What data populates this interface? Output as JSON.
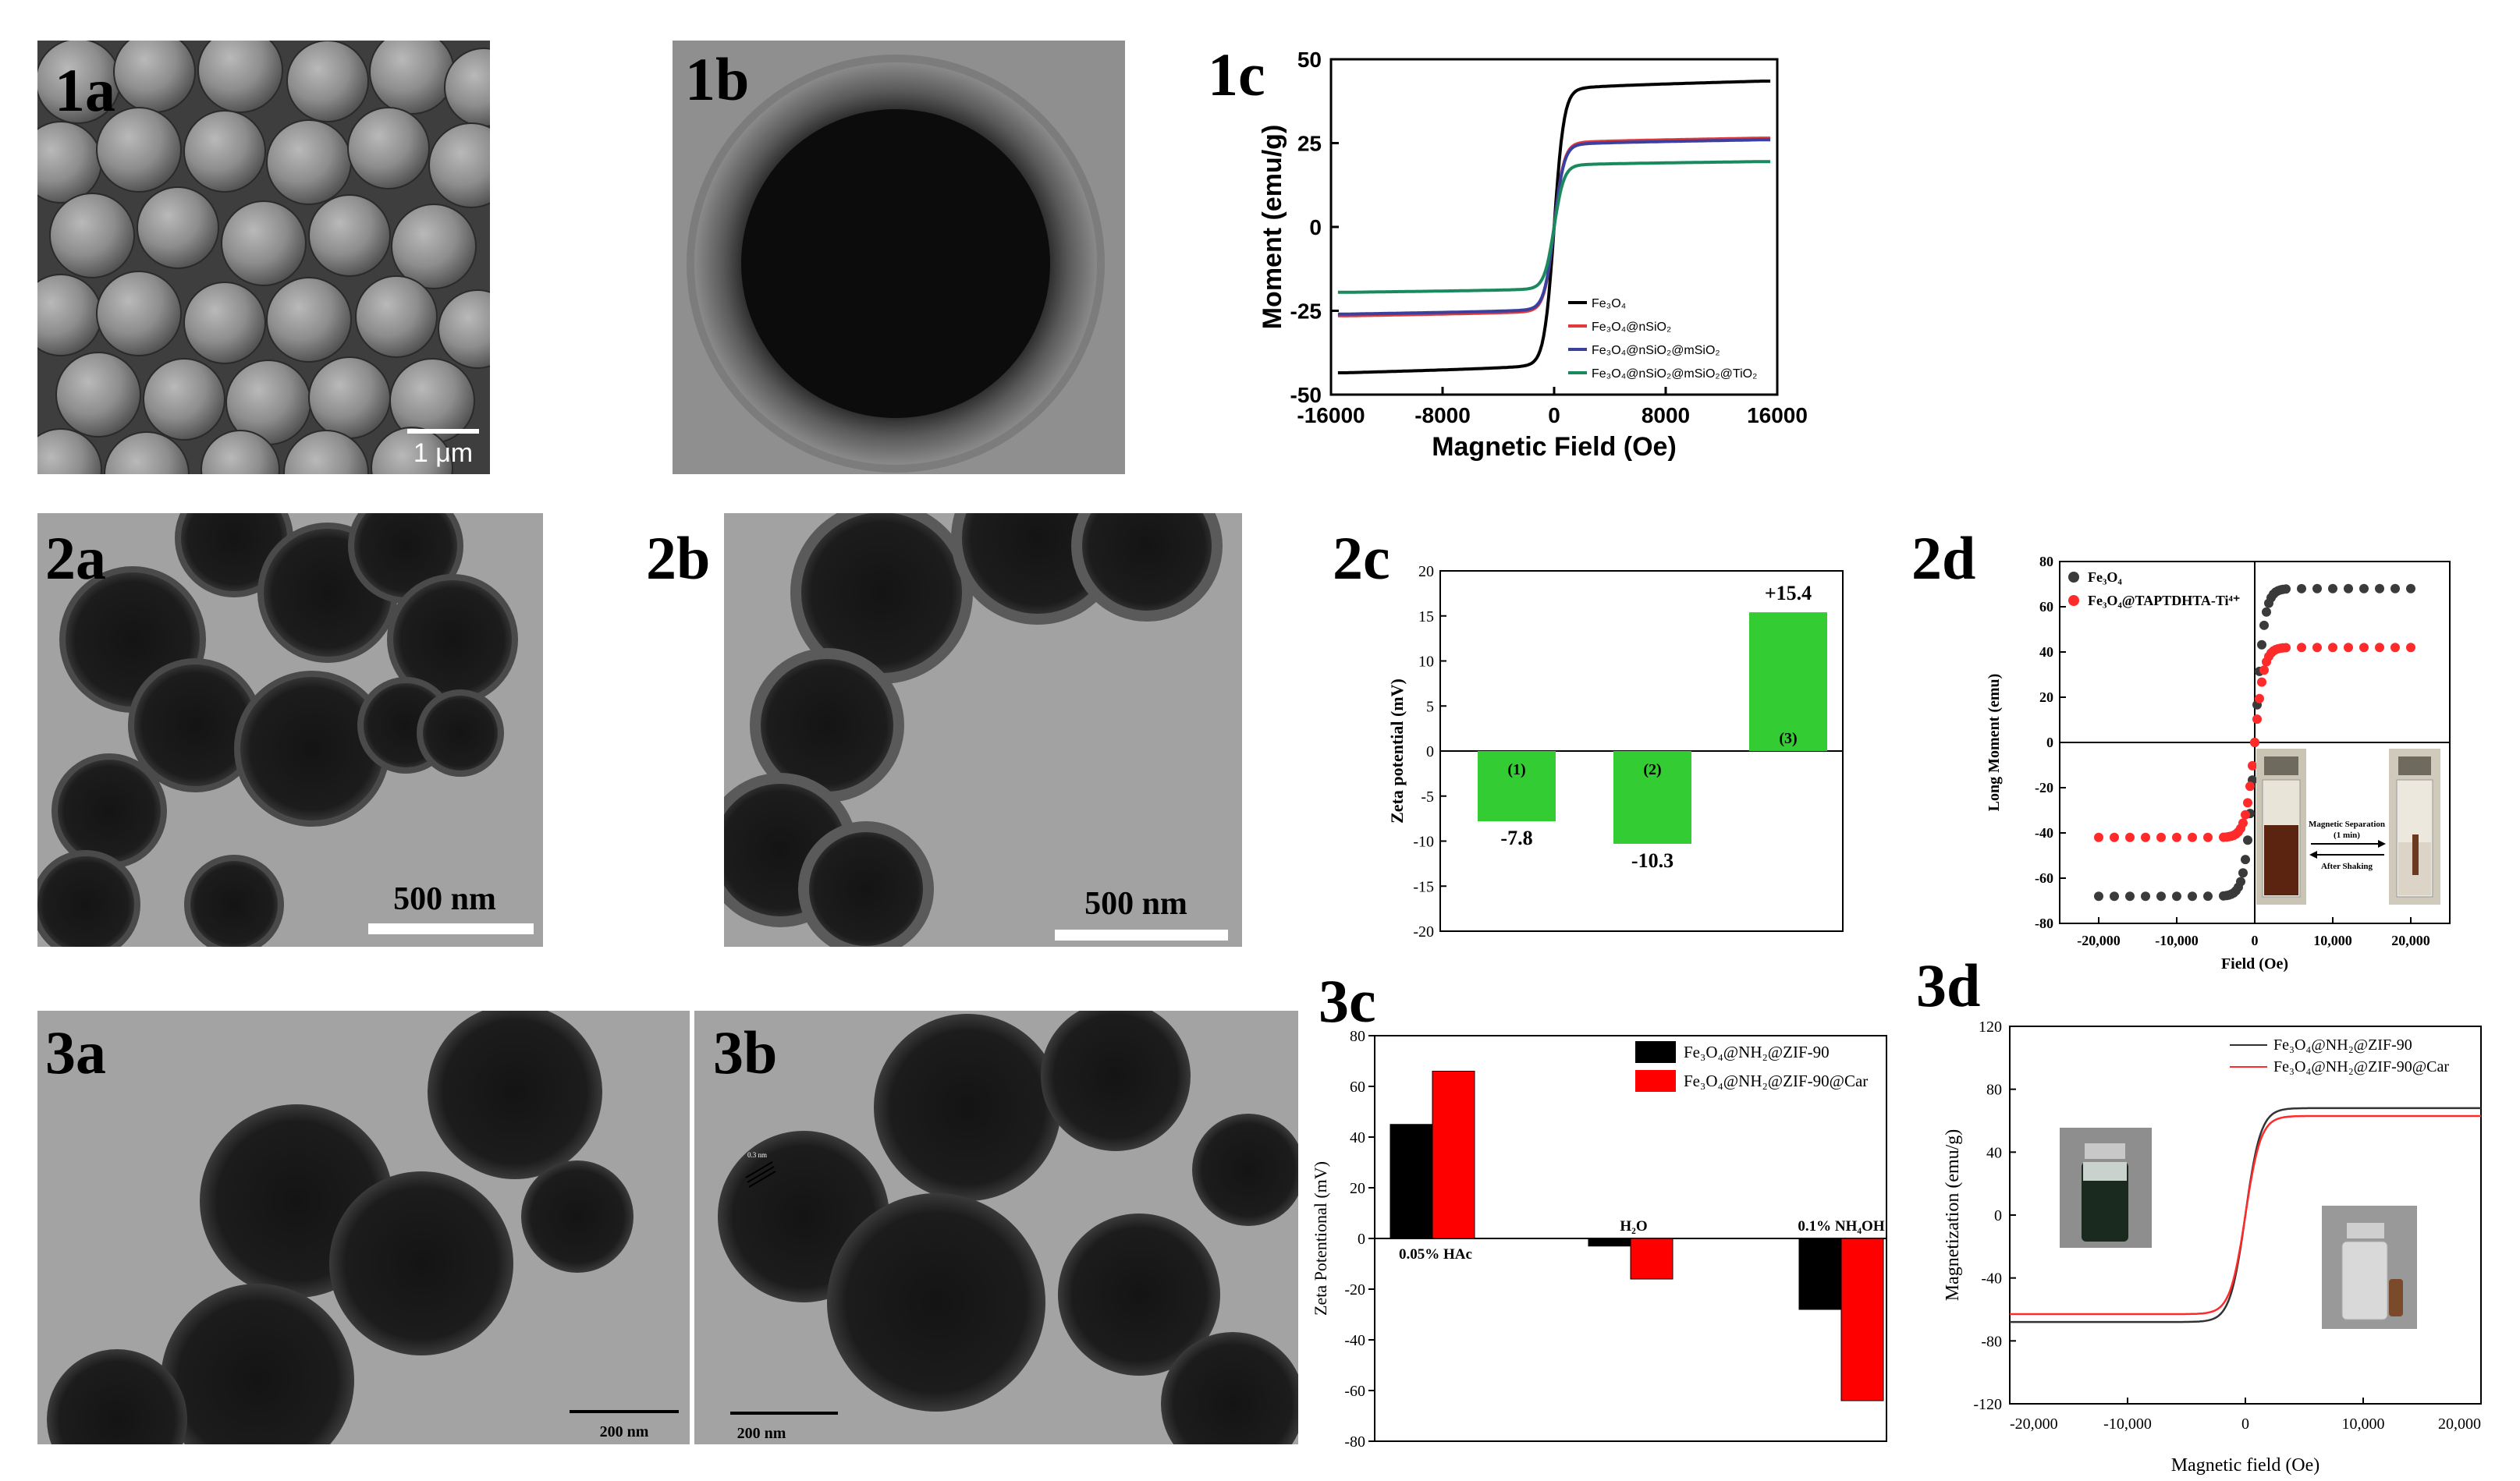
{
  "panel_labels": {
    "p1a": "1a",
    "p1b": "1b",
    "p1c": "1c",
    "p2a": "2a",
    "p2b": "2b",
    "p2c": "2c",
    "p2d": "2d",
    "p3a": "3a",
    "p3b": "3b",
    "p3c": "3c",
    "p3d": "3d"
  },
  "micrographs": {
    "p1a": {
      "type": "SEM",
      "scale_label": "1 μm"
    },
    "p1b": {
      "type": "TEM"
    },
    "p2a": {
      "type": "TEM",
      "scale_label": "500 nm"
    },
    "p2b": {
      "type": "TEM",
      "scale_label": "500 nm"
    },
    "p3a": {
      "type": "TEM",
      "scale_label": "200 nm"
    },
    "p3b": {
      "type": "TEM",
      "scale_label": "200 nm",
      "lattice_label": "0.3 nm"
    }
  },
  "colors": {
    "c_black": "#000000",
    "c_red": "#e23a3a",
    "c_blue": "#3b3f9e",
    "c_green": "#1a8a5e",
    "bar_green": "#33cc33",
    "series_red": "#ff0000"
  },
  "chart_data": [
    {
      "id": "1c",
      "type": "line",
      "xlabel": "Magnetic Field (Oe)",
      "ylabel": "Moment (emu/g)",
      "xlim": [
        -16000,
        16000
      ],
      "ylim": [
        -50,
        50
      ],
      "xticks": [
        "-16000",
        "-8000",
        "0",
        "8000",
        "16000"
      ],
      "yticks": [
        "-50",
        "-25",
        "0",
        "25",
        "50"
      ],
      "legend_position": "bottom-right",
      "series": [
        {
          "name": "Fe₃O₄",
          "ms": 43.5,
          "color": "#000000"
        },
        {
          "name": "Fe₃O₄@nSiO₂",
          "ms": 26.5,
          "color": "#e23a3a"
        },
        {
          "name": "Fe₃O₄@nSiO₂@mSiO₂",
          "ms": 26.0,
          "color": "#3b3f9e"
        },
        {
          "name": "Fe₃O₄@nSiO₂@mSiO₂@TiO₂",
          "ms": 19.5,
          "color": "#1a8a5e"
        }
      ]
    },
    {
      "id": "2c",
      "type": "bar",
      "ylabel": "Zeta potential (mV)",
      "ylim": [
        -20,
        20
      ],
      "yticks": [
        "-20",
        "-15",
        "-10",
        "-5",
        "0",
        "5",
        "10",
        "15",
        "20"
      ],
      "categories": [
        "(1)",
        "(2)",
        "(3)"
      ],
      "values": [
        -7.8,
        -10.3,
        15.4
      ],
      "value_labels": [
        "-7.8",
        "-10.3",
        "+15.4"
      ],
      "color": "#33cc33"
    },
    {
      "id": "2d",
      "type": "scatter",
      "xlabel": "Field (Oe)",
      "ylabel": "Long Moment (emu)",
      "xlim": [
        -25000,
        25000
      ],
      "ylim": [
        -80,
        80
      ],
      "xticks": [
        "-20,000",
        "-10,000",
        "0",
        "10,000",
        "20,000"
      ],
      "yticks": [
        "-80",
        "-60",
        "-40",
        "-20",
        "0",
        "20",
        "40",
        "60",
        "80"
      ],
      "legend_position": "top-left",
      "series": [
        {
          "name": "Fe₃O₄",
          "ms": 68,
          "color": "#3a3a3a"
        },
        {
          "name": "Fe₃O₄@TAPTDHTA-Ti⁴⁺",
          "ms": 42,
          "color": "#ff2a2a"
        }
      ],
      "inset": {
        "arrow_top": "Magnetic Separation",
        "arrow_top2": "(1 min)",
        "arrow_bottom": "After Shaking"
      }
    },
    {
      "id": "3c",
      "type": "bar",
      "ylabel": "Zeta Potentional (mV)",
      "ylim": [
        -80,
        80
      ],
      "yticks": [
        "-80",
        "-60",
        "-40",
        "-20",
        "0",
        "20",
        "40",
        "60",
        "80"
      ],
      "categories": [
        "0.05% HAc",
        "H₂O",
        "0.1% NH₄OH"
      ],
      "series": [
        {
          "name": "Fe₃O₄@NH₂@ZIF-90",
          "values": [
            45,
            -3,
            -28
          ],
          "color": "#000000"
        },
        {
          "name": "Fe₃O₄@NH₂@ZIF-90@Car",
          "values": [
            66,
            -16,
            -64
          ],
          "color": "#ff0000"
        }
      ],
      "legend_position": "top-right"
    },
    {
      "id": "3d",
      "type": "line",
      "xlabel": "Magnetic field (Oe)",
      "ylabel": "Magnetization (emu/g)",
      "xlim": [
        -20000,
        20000
      ],
      "ylim": [
        -120,
        120
      ],
      "xticks": [
        "-20,000",
        "-10,000",
        "0",
        "10,000",
        "20,000"
      ],
      "yticks": [
        "-120",
        "-80",
        "-40",
        "0",
        "40",
        "80",
        "120"
      ],
      "legend_position": "top-right",
      "series": [
        {
          "name": "Fe₃O₄@NH₂@ZIF-90",
          "ms": 68,
          "color": "#333333"
        },
        {
          "name": "Fe₃O₄@NH₂@ZIF-90@Car",
          "ms": 63,
          "color": "#ff2a2a"
        }
      ]
    }
  ]
}
